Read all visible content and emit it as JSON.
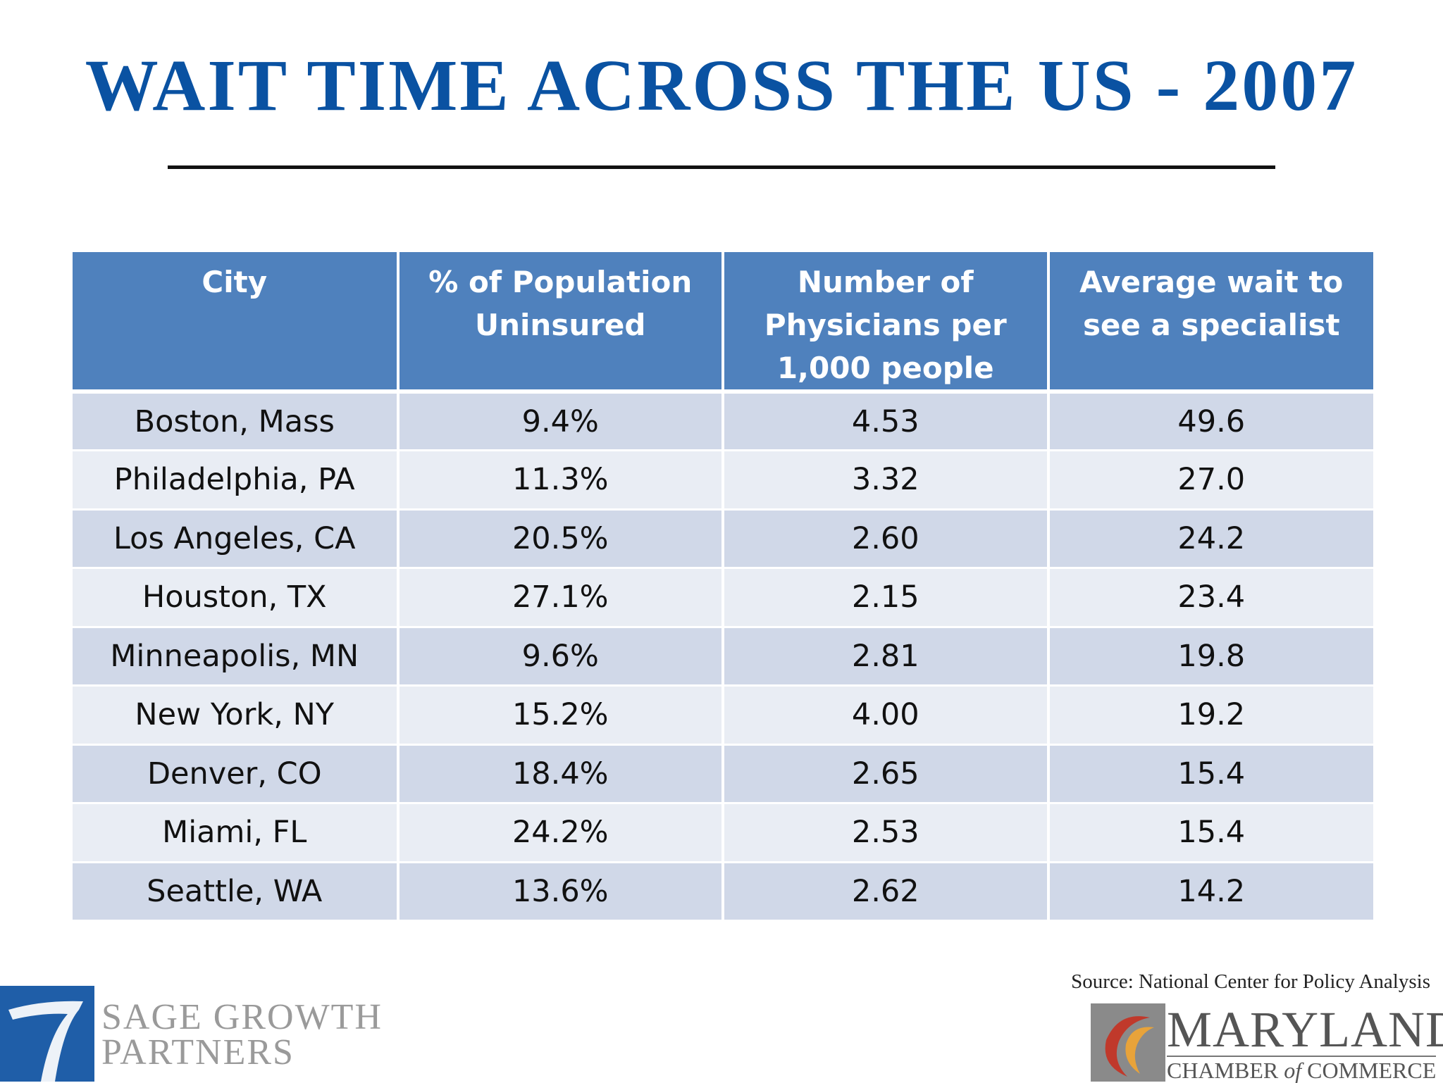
{
  "slide": {
    "title": "WAIT TIME ACROSS THE US - 2007",
    "source": "Source: National Center for Policy Analysis"
  },
  "table": {
    "headers": [
      "City",
      "% of Population Uninsured",
      "Number of Physicians per 1,000 people",
      "Average wait to see a specialist"
    ],
    "rows": [
      [
        "Boston, Mass",
        "9.4%",
        "4.53",
        "49.6"
      ],
      [
        "Philadelphia, PA",
        "11.3%",
        "3.32",
        "27.0"
      ],
      [
        "Los Angeles, CA",
        "20.5%",
        "2.60",
        "24.2"
      ],
      [
        "Houston, TX",
        "27.1%",
        "2.15",
        "23.4"
      ],
      [
        "Minneapolis, MN",
        "9.6%",
        "2.81",
        "19.8"
      ],
      [
        "New York, NY",
        "15.2%",
        "4.00",
        "19.2"
      ],
      [
        "Denver, CO",
        "18.4%",
        "2.65",
        "15.4"
      ],
      [
        "Miami, FL",
        "24.2%",
        "2.53",
        "15.4"
      ],
      [
        "Seattle, WA",
        "13.6%",
        "2.62",
        "14.2"
      ]
    ]
  },
  "logos": {
    "sage": {
      "icon": "sage-growth-seven-mark",
      "line1": "SAGE GROWTH",
      "line2": "PARTNERS",
      "color": "#1f5ea8"
    },
    "maryland": {
      "icon": "maryland-chamber-c-mark",
      "name": "MARYLAND",
      "sub_a": "CHAMBER ",
      "sub_of": "of",
      "sub_b": "COMMERCE",
      "color": "#c0392b"
    }
  }
}
